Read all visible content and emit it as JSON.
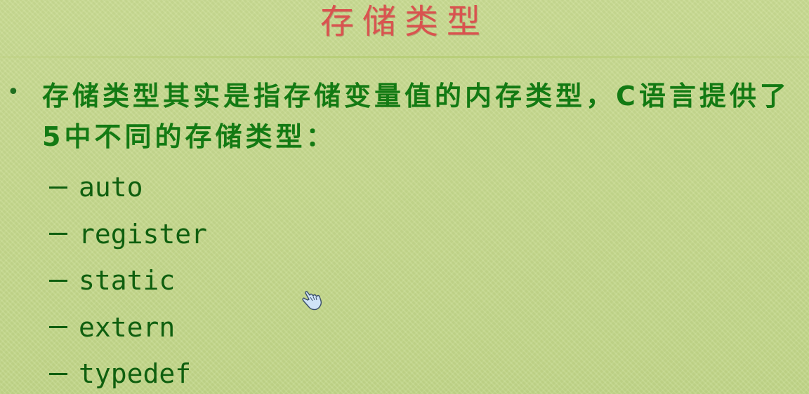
{
  "slide": {
    "title": "存储类型",
    "bullet": "存储类型其实是指存储变量值的内存类型，C语言提供了5中不同的存储类型：",
    "items": [
      "auto",
      "register",
      "static",
      "extern",
      "typedef"
    ]
  },
  "colors": {
    "title": "#d9534f",
    "text": "#137a13",
    "background": "#c4d98a"
  },
  "icons": {
    "cursor": "hand-pointer-icon"
  }
}
